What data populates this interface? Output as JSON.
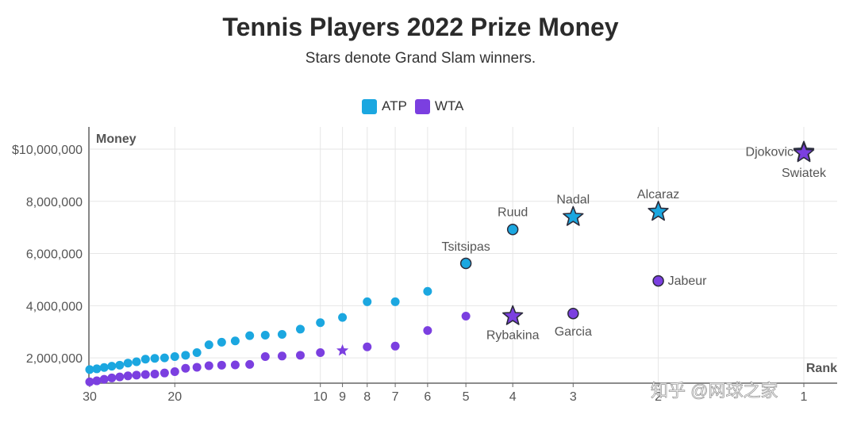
{
  "title": "Tennis Players 2022 Prize Money",
  "subtitle": "Stars denote Grand Slam winners.",
  "legend": [
    {
      "name": "ATP",
      "color": "#1ba7e0"
    },
    {
      "name": "WTA",
      "color": "#7b3fe0"
    }
  ],
  "watermark": "知乎 @网球之家",
  "chart_data": {
    "type": "scatter",
    "title": "Tennis Players 2022 Prize Money",
    "xlabel": "Rank",
    "ylabel": "Money",
    "x_scale": "log-reversed",
    "xlim": [
      30,
      1
    ],
    "ylim": [
      1000000,
      10500000
    ],
    "x_ticks": [
      "30",
      "20",
      "10",
      "9",
      "8",
      "7",
      "6",
      "5",
      "4",
      "3",
      "2",
      "1"
    ],
    "y_ticks": [
      {
        "value": 2000000,
        "label": "2,000,000"
      },
      {
        "value": 4000000,
        "label": "4,000,000"
      },
      {
        "value": 6000000,
        "label": "6,000,000"
      },
      {
        "value": 8000000,
        "label": "8,000,000"
      },
      {
        "value": 10000000,
        "label": "$10,000,000"
      }
    ],
    "grid": true,
    "series": [
      {
        "name": "ATP",
        "color": "#1ba7e0",
        "points": [
          {
            "rank": 30,
            "value": 1550000
          },
          {
            "rank": 29,
            "value": 1580000
          },
          {
            "rank": 28,
            "value": 1630000
          },
          {
            "rank": 27,
            "value": 1680000
          },
          {
            "rank": 26,
            "value": 1720000
          },
          {
            "rank": 25,
            "value": 1800000
          },
          {
            "rank": 24,
            "value": 1850000
          },
          {
            "rank": 23,
            "value": 1950000
          },
          {
            "rank": 22,
            "value": 1980000
          },
          {
            "rank": 21,
            "value": 2000000
          },
          {
            "rank": 20,
            "value": 2050000
          },
          {
            "rank": 19,
            "value": 2100000
          },
          {
            "rank": 18,
            "value": 2200000
          },
          {
            "rank": 17,
            "value": 2500000
          },
          {
            "rank": 16,
            "value": 2600000
          },
          {
            "rank": 15,
            "value": 2650000
          },
          {
            "rank": 14,
            "value": 2850000
          },
          {
            "rank": 13,
            "value": 2870000
          },
          {
            "rank": 12,
            "value": 2900000
          },
          {
            "rank": 11,
            "value": 3100000
          },
          {
            "rank": 10,
            "value": 3350000
          },
          {
            "rank": 9,
            "value": 3550000
          },
          {
            "rank": 8,
            "value": 4150000
          },
          {
            "rank": 7,
            "value": 4150000
          },
          {
            "rank": 6,
            "value": 4550000
          },
          {
            "rank": 5,
            "value": 5620000,
            "name": "Tsitsipas",
            "outlined": true
          },
          {
            "rank": 4,
            "value": 6920000,
            "name": "Ruud",
            "outlined": true
          },
          {
            "rank": 3,
            "value": 7400000,
            "name": "Nadal",
            "star": true
          },
          {
            "rank": 2,
            "value": 7600000,
            "name": "Alcaraz",
            "star": true
          },
          {
            "rank": 1,
            "value": 9900000,
            "name": "Djokovic",
            "star": true
          }
        ]
      },
      {
        "name": "WTA",
        "color": "#7b3fe0",
        "points": [
          {
            "rank": 30,
            "value": 1080000
          },
          {
            "rank": 29,
            "value": 1120000
          },
          {
            "rank": 28,
            "value": 1180000
          },
          {
            "rank": 27,
            "value": 1230000
          },
          {
            "rank": 26,
            "value": 1270000
          },
          {
            "rank": 25,
            "value": 1310000
          },
          {
            "rank": 24,
            "value": 1340000
          },
          {
            "rank": 23,
            "value": 1360000
          },
          {
            "rank": 22,
            "value": 1380000
          },
          {
            "rank": 21,
            "value": 1420000
          },
          {
            "rank": 20,
            "value": 1470000
          },
          {
            "rank": 19,
            "value": 1600000
          },
          {
            "rank": 18,
            "value": 1640000
          },
          {
            "rank": 17,
            "value": 1700000
          },
          {
            "rank": 16,
            "value": 1720000
          },
          {
            "rank": 15,
            "value": 1730000
          },
          {
            "rank": 14,
            "value": 1750000
          },
          {
            "rank": 13,
            "value": 2050000
          },
          {
            "rank": 12,
            "value": 2070000
          },
          {
            "rank": 11,
            "value": 2100000
          },
          {
            "rank": 10,
            "value": 2200000
          },
          {
            "rank": 9,
            "value": 2280000,
            "star": true
          },
          {
            "rank": 8,
            "value": 2420000
          },
          {
            "rank": 7,
            "value": 2450000
          },
          {
            "rank": 6,
            "value": 3050000
          },
          {
            "rank": 5,
            "value": 3600000
          },
          {
            "rank": 4,
            "value": 3600000,
            "name": "Rybakina",
            "star": true
          },
          {
            "rank": 3,
            "value": 3700000,
            "name": "Garcia",
            "outlined": true
          },
          {
            "rank": 2,
            "value": 4950000,
            "name": "Jabeur",
            "outlined": true
          },
          {
            "rank": 1,
            "value": 9850000,
            "name": "Swiatek",
            "star": true
          }
        ]
      }
    ]
  }
}
